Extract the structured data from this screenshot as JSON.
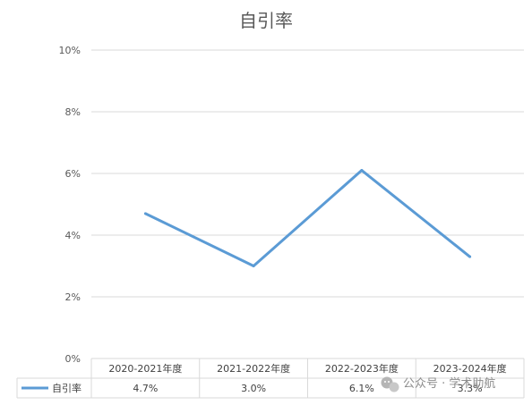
{
  "chart_data": {
    "type": "line",
    "title": "自引率",
    "categories": [
      "2020-2021年度",
      "2021-2022年度",
      "2022-2023年度",
      "2023-2024年度"
    ],
    "series": [
      {
        "name": "自引率",
        "values": [
          4.7,
          3.0,
          6.1,
          3.3
        ],
        "labels": [
          "4.7%",
          "3.0%",
          "6.1%",
          "3.3%"
        ]
      }
    ],
    "ylim": [
      0,
      10
    ],
    "yticks": [
      "0%",
      "2%",
      "4%",
      "6%",
      "8%",
      "10%"
    ],
    "grid": true,
    "legend": "data-table",
    "colors": {
      "series": "#5b9bd5",
      "grid": "#d9d9d9",
      "text": "#595959"
    }
  },
  "watermark": "公众号 · 学术助航"
}
